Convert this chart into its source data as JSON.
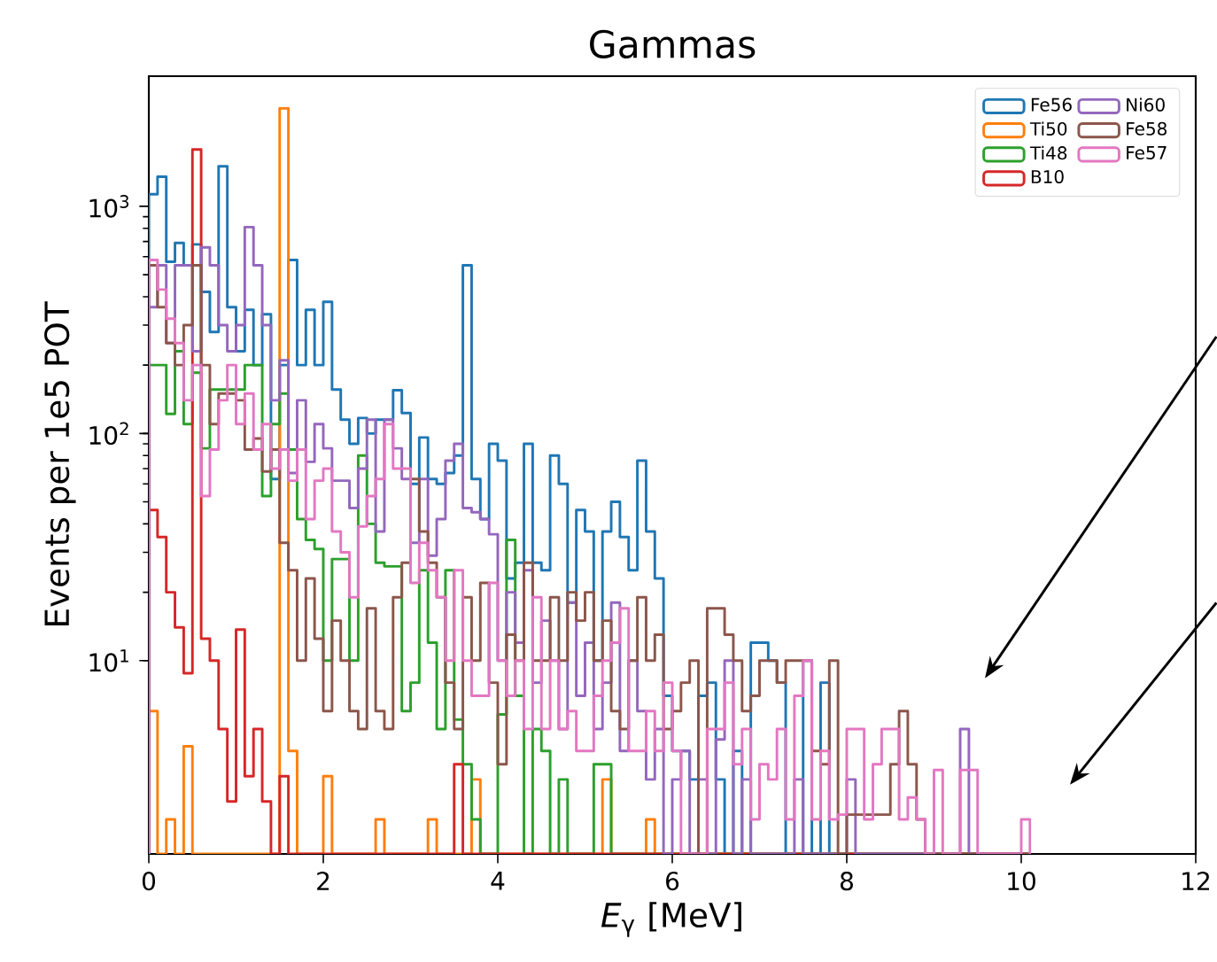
{
  "chart_data": {
    "type": "histogram",
    "title": "Gammas",
    "xlabel": "*E*$_{γ}$ [MeV]",
    "ylabel": "Events per 1e5 POT",
    "log": "y",
    "legend": "top right",
    "xlim": [
      0,
      12
    ],
    "ylim": [
      1.41,
      3740
    ],
    "xticks": [
      0,
      2,
      4,
      6,
      8,
      10,
      12
    ],
    "yticks": [
      {
        "value": 10,
        "label": "10$^{1}$"
      },
      {
        "value": 100,
        "label": "10$^{2}$"
      },
      {
        "value": 1000,
        "label": "10$^{3}$"
      }
    ],
    "bins": [
      0,
      0.1,
      0.2,
      0.3,
      0.4,
      0.5,
      0.6,
      0.7,
      0.8,
      0.9,
      1,
      1.1,
      1.2,
      1.3,
      1.4,
      1.5,
      1.6,
      1.7,
      1.8,
      1.9,
      2,
      2.1,
      2.2,
      2.3,
      2.4,
      2.5,
      2.6,
      2.7,
      2.8,
      2.9,
      3,
      3.1,
      3.2,
      3.3,
      3.4,
      3.5,
      3.6,
      3.7,
      3.8,
      3.9,
      4,
      4.1,
      4.2,
      4.3,
      4.4,
      4.5,
      4.6,
      4.7,
      4.8,
      4.9,
      5,
      5.1,
      5.2,
      5.3,
      5.4,
      5.5,
      5.6,
      5.7,
      5.8,
      5.9,
      6,
      6.1,
      6.2,
      6.3,
      6.4,
      6.5,
      6.6,
      6.7,
      6.8,
      6.9,
      7,
      7.1,
      7.2,
      7.3,
      7.4,
      7.5,
      7.6,
      7.7,
      7.8,
      7.9,
      8,
      8.1,
      8.2,
      8.3,
      8.4,
      8.5,
      8.6,
      8.7,
      8.8,
      8.9,
      9,
      9.1,
      9.2,
      9.3,
      9.4,
      9.5,
      9.6,
      9.7,
      9.8,
      9.9,
      10,
      10.1
    ],
    "series": [
      {
        "name": "Fe56",
        "color": "#1f77b4",
        "values": [
          1130,
          1350,
          570,
          690,
          550,
          680,
          420,
          280,
          1500,
          360,
          230,
          350,
          200,
          335,
          63,
          200,
          580,
          200,
          350,
          200,
          380,
          156,
          115,
          90,
          117,
          100,
          115,
          115,
          155,
          123,
          60,
          96,
          63,
          60,
          67,
          80,
          550,
          63,
          42,
          90,
          76,
          23,
          27,
          90,
          27,
          25,
          80,
          60,
          18,
          46,
          37,
          10,
          37,
          50,
          35,
          25,
          76,
          37,
          23,
          7,
          4,
          4,
          3,
          7,
          8,
          3,
          null,
          4,
          null,
          12,
          12,
          10,
          8,
          null,
          null,
          10,
          null,
          8,
          null,
          null,
          null,
          null,
          null,
          null,
          null,
          null,
          null,
          null,
          null,
          null,
          null,
          null,
          null,
          null,
          null,
          null,
          null,
          null,
          null,
          null,
          null
        ]
      },
      {
        "name": "Ti50",
        "color": "#ff7f0e",
        "values": [
          6,
          null,
          2,
          null,
          4.2,
          null,
          null,
          null,
          null,
          null,
          null,
          null,
          null,
          null,
          null,
          2700,
          4,
          null,
          null,
          null,
          3.1,
          null,
          null,
          null,
          null,
          null,
          2,
          null,
          null,
          null,
          null,
          null,
          2,
          null,
          null,
          null,
          null,
          3,
          null,
          null,
          null,
          null,
          null,
          null,
          null,
          null,
          null,
          null,
          null,
          null,
          null,
          null,
          3,
          null,
          null,
          null,
          null,
          2,
          null,
          null,
          null,
          null,
          null,
          null,
          null,
          null,
          null,
          null,
          null,
          null,
          null,
          null,
          null,
          null,
          null,
          null,
          null,
          null,
          null,
          null,
          null,
          null,
          null,
          null,
          null,
          null,
          null,
          null,
          null,
          null,
          null,
          null,
          null,
          null,
          null,
          null,
          null,
          null,
          null,
          null,
          null
        ]
      },
      {
        "name": "Ti48",
        "color": "#2ca02c",
        "values": [
          200,
          200,
          122,
          230,
          110,
          185,
          86,
          156,
          156,
          156,
          156,
          200,
          200,
          53,
          110,
          150,
          85,
          42,
          34,
          31,
          10,
          28,
          28,
          10,
          80,
          40,
          27,
          26,
          26,
          6,
          8,
          25,
          12,
          5,
          25,
          5.5,
          3.5,
          2,
          null,
          null,
          5.8,
          34,
          7,
          null,
          5,
          4,
          null,
          3,
          null,
          null,
          null,
          3.5,
          3.5,
          null,
          null,
          null,
          null,
          null,
          null,
          null,
          null,
          null,
          null,
          null,
          null,
          null,
          null,
          null,
          null,
          null,
          null,
          null,
          null,
          null,
          null,
          null,
          null,
          null,
          null,
          null,
          null,
          null,
          null,
          null,
          null,
          null,
          null,
          null,
          null,
          null,
          null,
          null,
          null,
          null,
          null,
          null,
          null,
          null,
          null,
          null,
          null
        ]
      },
      {
        "name": "B10",
        "color": "#d62728",
        "values": [
          46,
          35,
          20,
          14,
          8.8,
          1780,
          12.5,
          10,
          5,
          2.4,
          13.7,
          3.1,
          5,
          2.4,
          null,
          3.1,
          null,
          null,
          null,
          null,
          null,
          null,
          null,
          null,
          null,
          null,
          null,
          null,
          null,
          null,
          null,
          null,
          null,
          null,
          null,
          3.5,
          null,
          null,
          null,
          null,
          null,
          null,
          null,
          null,
          null,
          null,
          null,
          null,
          null,
          null,
          null,
          null,
          null,
          null,
          null,
          null,
          null,
          null,
          null,
          null,
          null,
          null,
          null,
          null,
          null,
          null,
          null,
          null,
          null,
          null,
          null,
          null,
          null,
          null,
          null,
          null,
          null,
          null,
          null,
          null,
          null,
          null,
          null,
          null,
          null,
          null,
          null,
          null,
          null,
          null,
          null,
          null,
          null,
          null,
          null,
          null,
          null,
          null,
          null,
          null,
          null
        ]
      },
      {
        "name": "Ni60",
        "color": "#9467bd",
        "values": [
          360,
          550,
          250,
          550,
          550,
          230,
          660,
          550,
          300,
          230,
          300,
          810,
          550,
          300,
          140,
          210,
          67,
          140,
          75,
          110,
          86,
          62,
          62,
          47,
          70,
          115,
          37,
          115,
          86,
          63,
          33,
          63,
          29,
          42,
          76,
          90,
          47,
          45,
          42,
          36,
          10,
          20,
          12,
          25,
          8,
          15,
          10,
          5,
          18,
          7,
          12,
          5,
          8,
          18,
          4,
          10,
          6,
          3,
          5,
          null,
          3,
          4,
          null,
          3,
          null,
          4.5,
          10,
          null,
          3,
          null,
          null,
          null,
          null,
          null,
          3,
          null,
          null,
          null,
          null,
          null,
          3,
          null,
          null,
          null,
          null,
          null,
          null,
          null,
          null,
          null,
          null,
          null,
          null,
          5,
          null,
          null,
          null,
          null,
          null,
          null,
          null
        ]
      },
      {
        "name": "Fe58",
        "color": "#8c564b",
        "values": [
          550,
          360,
          250,
          200,
          300,
          550,
          200,
          110,
          150,
          150,
          140,
          85,
          95,
          68,
          85,
          33,
          25,
          10,
          23,
          12.5,
          6,
          15,
          10,
          6,
          5,
          17,
          6,
          5,
          19,
          27,
          63,
          37,
          27,
          19,
          8,
          5,
          19,
          10,
          22,
          8,
          3.5,
          13,
          10,
          27,
          10,
          10,
          19,
          10,
          20,
          15,
          20,
          10,
          15,
          6,
          5,
          10,
          19,
          10,
          13,
          5,
          6,
          8,
          10,
          null,
          17,
          17,
          13,
          10,
          6,
          7,
          10,
          10,
          8,
          10,
          10,
          10,
          4,
          3.5,
          10,
          null,
          2.1,
          2.1,
          2.1,
          2.1,
          2.1,
          3.5,
          6,
          3.5,
          2,
          null,
          null,
          null,
          null,
          null,
          null,
          null,
          null,
          null,
          null,
          null,
          null
        ]
      },
      {
        "name": "Fe57",
        "color": "#e377c2",
        "values": [
          580,
          430,
          320,
          250,
          140,
          200,
          53,
          85,
          140,
          200,
          110,
          150,
          85,
          110,
          70,
          85,
          62,
          85,
          42,
          62,
          70,
          37,
          30,
          19,
          39,
          53,
          63,
          110,
          70,
          70,
          22,
          33,
          25,
          19,
          10,
          25,
          10,
          7,
          7,
          22,
          10,
          7,
          10,
          5,
          19,
          5,
          10,
          5,
          6,
          4,
          4,
          7,
          10,
          12,
          17,
          4,
          4,
          6,
          4,
          8,
          4,
          null,
          null,
          null,
          5,
          5,
          8,
          3.5,
          5,
          2,
          3.5,
          3,
          5,
          2,
          7,
          10,
          2,
          4,
          2,
          2.1,
          5,
          5,
          2,
          3.5,
          5,
          5,
          2,
          2.5,
          2,
          null,
          3.3,
          null,
          null,
          3.3,
          3.3,
          null,
          null,
          null,
          null,
          null,
          2
        ]
      }
    ]
  }
}
